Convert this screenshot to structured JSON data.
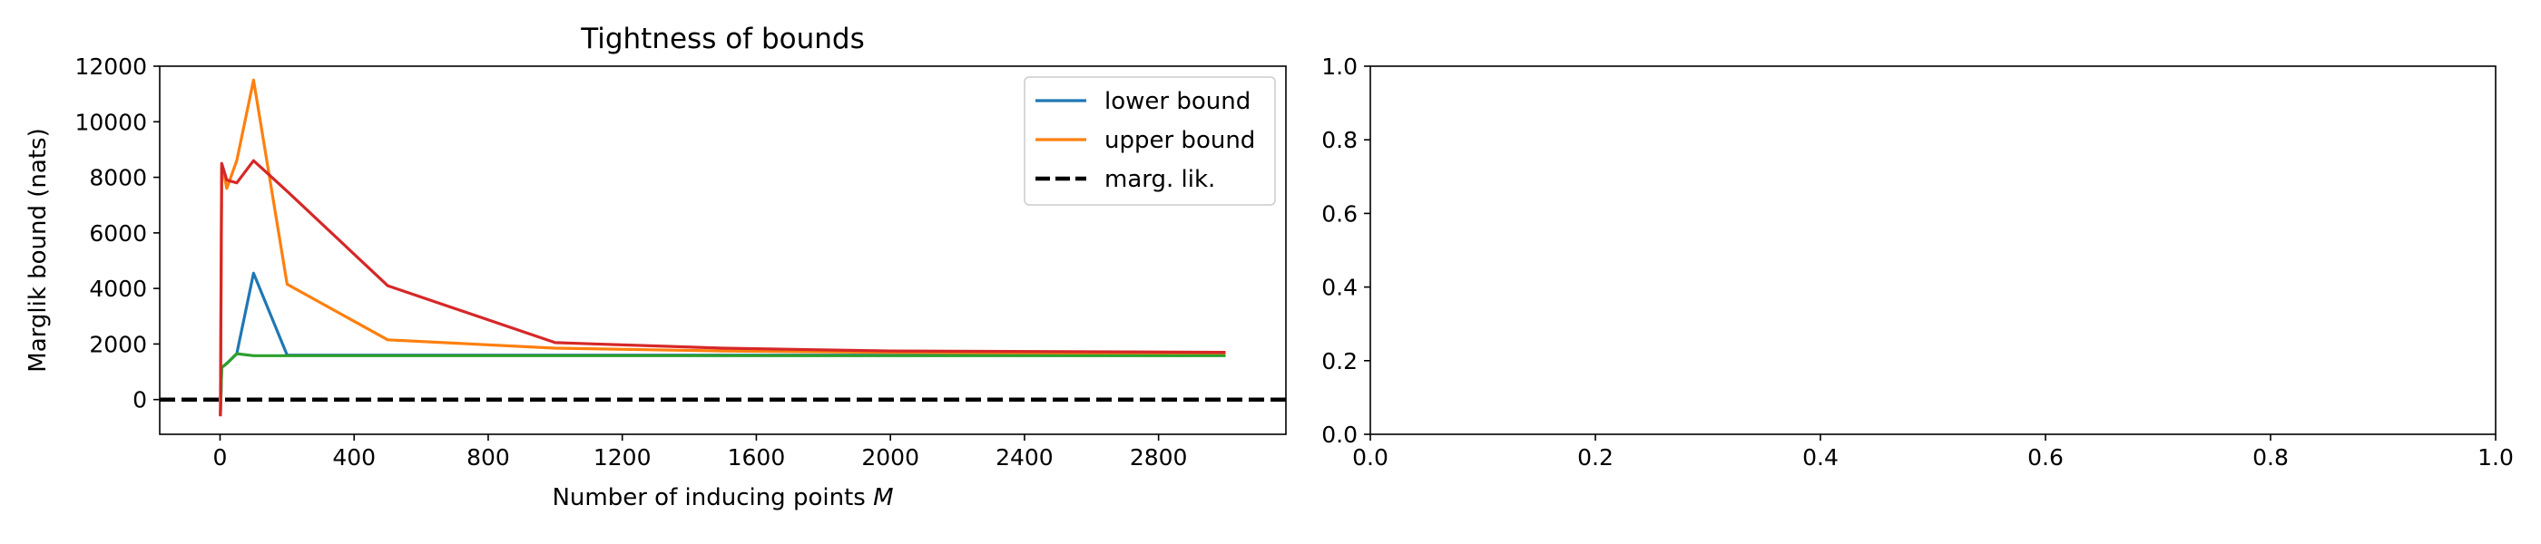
{
  "chart_data": [
    {
      "type": "line",
      "title": "Tightness of bounds",
      "xlabel": "Number of inducing points M",
      "ylabel": "Marglik bound (nats)",
      "xlim": [
        -180,
        3180
      ],
      "ylim": [
        -1250,
        12000
      ],
      "xticks": [
        0,
        400,
        800,
        1200,
        1600,
        2000,
        2400,
        2800
      ],
      "yticks": [
        0,
        2000,
        4000,
        6000,
        8000,
        10000,
        12000
      ],
      "grid": false,
      "legend_position": "top-right",
      "series": [
        {
          "name": "lower bound",
          "color": "#1f77b4",
          "style": "solid",
          "x": [
            1,
            5,
            10,
            20,
            50,
            100,
            200,
            500,
            1000,
            1500,
            2000,
            3000
          ],
          "y": [
            -550,
            1150,
            1200,
            1300,
            1650,
            4550,
            1600,
            1600,
            1600,
            1600,
            1600,
            1600
          ]
        },
        {
          "name": "upper bound",
          "color": "#ff7f0e",
          "style": "solid",
          "x": [
            1,
            5,
            10,
            20,
            50,
            100,
            200,
            500,
            1000,
            1500,
            2000,
            3000
          ],
          "y": [
            -600,
            8350,
            8200,
            7600,
            8600,
            11500,
            4150,
            2150,
            1850,
            1750,
            1700,
            1650
          ]
        },
        {
          "name": "marg. lik.",
          "color": "#000000",
          "style": "dashed",
          "x": [
            -180,
            3180
          ],
          "y": [
            0,
            0
          ]
        },
        {
          "color": "#2ca02c",
          "style": "solid",
          "x": [
            1,
            5,
            10,
            20,
            50,
            100,
            200,
            500,
            1000,
            1500,
            2000,
            3000
          ],
          "y": [
            -550,
            1150,
            1200,
            1300,
            1650,
            1580,
            1580,
            1580,
            1580,
            1580,
            1580,
            1580
          ]
        },
        {
          "color": "#d62728",
          "style": "solid",
          "x": [
            1,
            3,
            5,
            10,
            20,
            50,
            100,
            200,
            500,
            1000,
            1500,
            2000,
            3000
          ],
          "y": [
            -600,
            4200,
            8500,
            8300,
            7900,
            7800,
            8600,
            7500,
            4100,
            2050,
            1850,
            1750,
            1700
          ]
        }
      ]
    },
    {
      "type": "line",
      "title": "",
      "xlabel": "",
      "ylabel": "",
      "xlim": [
        0,
        1
      ],
      "ylim": [
        0,
        1
      ],
      "xticks": [
        0.0,
        0.2,
        0.4,
        0.6,
        0.8,
        1.0
      ],
      "yticks": [
        0.0,
        0.2,
        0.4,
        0.6,
        0.8,
        1.0
      ],
      "xtick_labels": [
        "0.0",
        "0.2",
        "0.4",
        "0.6",
        "0.8",
        "1.0"
      ],
      "ytick_labels": [
        "0.0",
        "0.2",
        "0.4",
        "0.6",
        "0.8",
        "1.0"
      ],
      "grid": false,
      "series": []
    }
  ]
}
